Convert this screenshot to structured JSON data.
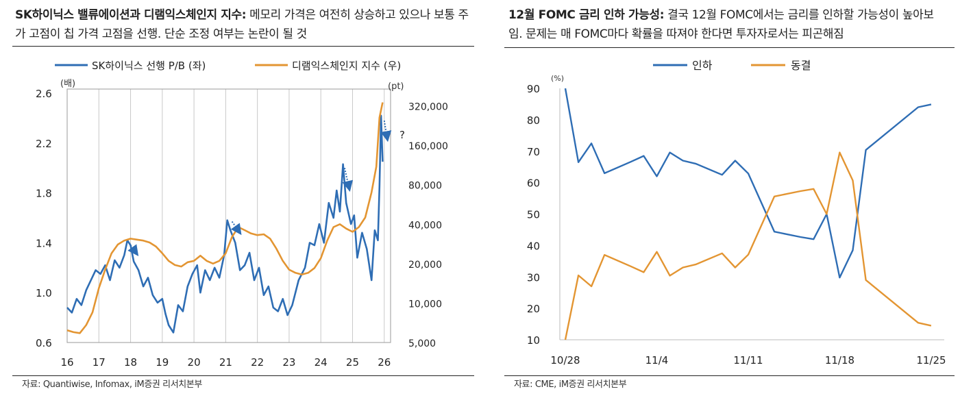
{
  "left": {
    "title_bold": "SK하이닉스 밸류에이션과 디램익스체인지 지수:",
    "title_rest": " 메모리 가격은 여전히 상승하고 있으나 보통 주가 고점이 칩 가격 고점을 선행. 단순 조정 여부는 논란이 될 것",
    "source": "자료: Quantiwise, Infomax, iM증권 리서치본부"
  },
  "right": {
    "title_bold": "12월 FOMC 금리 인하 가능성:",
    "title_rest": " 결국 12월 FOMC에서는 금리를 인하할 가능성이 높아보임. 문제는 매 FOMC마다 확률을 따져야 한다면 투자자로서는 피곤해짐",
    "source": "자료: CME, iM증권 리서치본부"
  },
  "chart_data": [
    {
      "type": "line",
      "title": "SK하이닉스 밸류에이션과 디램익스체인지 지수",
      "left_axis_unit": "(배)",
      "right_axis_unit": "(pt)",
      "left_ylim": [
        0.6,
        2.6
      ],
      "left_ticks": [
        "2.6",
        "2.2",
        "1.8",
        "1.4",
        "1.0",
        "0.6"
      ],
      "left_tick_values": [
        2.6,
        2.2,
        1.8,
        1.4,
        1.0,
        0.6
      ],
      "right_scale": "log",
      "right_ylim": [
        5000,
        400000
      ],
      "right_ticks": [
        "320,000",
        "160,000",
        "80,000",
        "40,000",
        "20,000",
        "10,000",
        "5,000"
      ],
      "right_tick_values": [
        320000,
        160000,
        80000,
        40000,
        20000,
        10000,
        5000
      ],
      "xlim": [
        2016,
        2026.2
      ],
      "x_ticks": [
        "16",
        "17",
        "18",
        "19",
        "20",
        "21",
        "22",
        "23",
        "24",
        "25",
        "26"
      ],
      "x_tick_values": [
        2016,
        2017,
        2018,
        2019,
        2020,
        2021,
        2022,
        2023,
        2024,
        2025,
        2026
      ],
      "question_mark": "?",
      "series": [
        {
          "name": "SK하이닉스 선행 P/B (좌)",
          "color": "#2e6db4",
          "axis": "left",
          "x": [
            2016.0,
            2016.15,
            2016.3,
            2016.45,
            2016.6,
            2016.75,
            2016.9,
            2017.05,
            2017.2,
            2017.35,
            2017.5,
            2017.65,
            2017.8,
            2017.9,
            2018.0,
            2018.1,
            2018.25,
            2018.4,
            2018.55,
            2018.7,
            2018.85,
            2019.0,
            2019.1,
            2019.2,
            2019.35,
            2019.5,
            2019.65,
            2019.8,
            2019.95,
            2020.1,
            2020.2,
            2020.35,
            2020.5,
            2020.65,
            2020.8,
            2020.95,
            2021.05,
            2021.15,
            2021.3,
            2021.45,
            2021.6,
            2021.75,
            2021.9,
            2022.05,
            2022.2,
            2022.35,
            2022.5,
            2022.65,
            2022.8,
            2022.95,
            2023.1,
            2023.3,
            2023.5,
            2023.65,
            2023.8,
            2023.95,
            2024.1,
            2024.25,
            2024.4,
            2024.5,
            2024.6,
            2024.7,
            2024.8,
            2024.95,
            2025.05,
            2025.15,
            2025.3,
            2025.45,
            2025.6,
            2025.7,
            2025.8,
            2025.85,
            2025.9,
            2025.95
          ],
          "values": [
            0.88,
            0.84,
            0.95,
            0.9,
            1.02,
            1.1,
            1.18,
            1.15,
            1.22,
            1.1,
            1.26,
            1.2,
            1.3,
            1.42,
            1.38,
            1.25,
            1.18,
            1.05,
            1.12,
            0.98,
            0.92,
            0.95,
            0.83,
            0.74,
            0.68,
            0.9,
            0.85,
            1.05,
            1.15,
            1.22,
            1.0,
            1.18,
            1.1,
            1.2,
            1.12,
            1.3,
            1.58,
            1.5,
            1.4,
            1.18,
            1.22,
            1.32,
            1.1,
            1.2,
            0.98,
            1.05,
            0.88,
            0.85,
            0.95,
            0.82,
            0.9,
            1.1,
            1.2,
            1.4,
            1.38,
            1.55,
            1.4,
            1.72,
            1.6,
            1.82,
            1.65,
            2.03,
            1.72,
            1.55,
            1.62,
            1.28,
            1.48,
            1.35,
            1.1,
            1.5,
            1.42,
            1.85,
            2.42,
            2.05
          ]
        },
        {
          "name": "디램익스체인지 지수 (우)",
          "color": "#e39532",
          "axis": "right",
          "x": [
            2016.0,
            2016.2,
            2016.4,
            2016.6,
            2016.8,
            2017.0,
            2017.2,
            2017.4,
            2017.6,
            2017.8,
            2018.0,
            2018.2,
            2018.4,
            2018.6,
            2018.8,
            2019.0,
            2019.2,
            2019.4,
            2019.6,
            2019.8,
            2020.0,
            2020.2,
            2020.4,
            2020.6,
            2020.8,
            2021.0,
            2021.2,
            2021.4,
            2021.6,
            2021.8,
            2022.0,
            2022.2,
            2022.4,
            2022.6,
            2022.8,
            2023.0,
            2023.2,
            2023.4,
            2023.6,
            2023.8,
            2024.0,
            2024.2,
            2024.4,
            2024.6,
            2024.8,
            2025.0,
            2025.2,
            2025.4,
            2025.6,
            2025.75,
            2025.85,
            2025.95
          ],
          "values": [
            6200,
            6000,
            5900,
            6800,
            8500,
            13000,
            18000,
            24000,
            28000,
            30000,
            31000,
            30500,
            30000,
            29000,
            27000,
            24000,
            21000,
            19500,
            19000,
            20500,
            21000,
            23000,
            21000,
            20000,
            21000,
            24000,
            32000,
            38000,
            36000,
            34000,
            33000,
            33500,
            31000,
            26000,
            21000,
            18000,
            17000,
            16500,
            17000,
            18500,
            22000,
            30000,
            38000,
            40000,
            37000,
            35000,
            38000,
            45000,
            70000,
            110000,
            260000,
            340000
          ]
        }
      ],
      "annotations": [
        {
          "x1": 2018.0,
          "y1": 1.38,
          "x2": 2018.2,
          "y2": 1.31
        },
        {
          "x1": 2021.2,
          "y1": 1.57,
          "x2": 2021.45,
          "y2": 1.48
        },
        {
          "x1": 2024.75,
          "y1": 2.0,
          "x2": 2024.9,
          "y2": 1.83
        },
        {
          "x1": 2026.0,
          "y1": 2.38,
          "x2": 2026.1,
          "y2": 2.23
        }
      ]
    },
    {
      "type": "line",
      "title": "12월 FOMC 금리 인하 가능성",
      "y_unit": "(%)",
      "ylim": [
        10,
        90
      ],
      "y_ticks": [
        "90",
        "80",
        "70",
        "60",
        "50",
        "40",
        "30",
        "20",
        "10"
      ],
      "y_tick_values": [
        90,
        80,
        70,
        60,
        50,
        40,
        30,
        20,
        10
      ],
      "x_ticks": [
        "10/28",
        "11/4",
        "11/11",
        "11/18",
        "11/25"
      ],
      "x_tick_values": [
        0,
        7,
        14,
        21,
        28
      ],
      "xlim": [
        0,
        29
      ],
      "series": [
        {
          "name": "인하",
          "color": "#2e6db4",
          "x": [
            0,
            1,
            2,
            3,
            5,
            6,
            7,
            8,
            9,
            10,
            12,
            13,
            14,
            16,
            18,
            19,
            20,
            21,
            22,
            23,
            27,
            28
          ],
          "values": [
            90,
            66.5,
            72.5,
            63,
            66.6,
            68.5,
            62,
            69.6,
            67,
            66,
            62.5,
            67,
            62.9,
            44.4,
            42.7,
            42,
            50,
            29.8,
            38.5,
            70.4,
            84,
            84.9
          ]
        },
        {
          "name": "동결",
          "color": "#e39532",
          "x": [
            0,
            1,
            2,
            3,
            5,
            6,
            7,
            8,
            9,
            10,
            12,
            13,
            14,
            16,
            18,
            19,
            20,
            21,
            22,
            23,
            27,
            28
          ],
          "values": [
            10,
            30.5,
            27,
            37,
            33.4,
            31.5,
            38,
            30.4,
            33,
            34,
            37.5,
            33,
            37.1,
            55.6,
            57.3,
            58,
            50,
            69.6,
            60.7,
            29,
            15.4,
            14.5
          ]
        }
      ]
    }
  ]
}
